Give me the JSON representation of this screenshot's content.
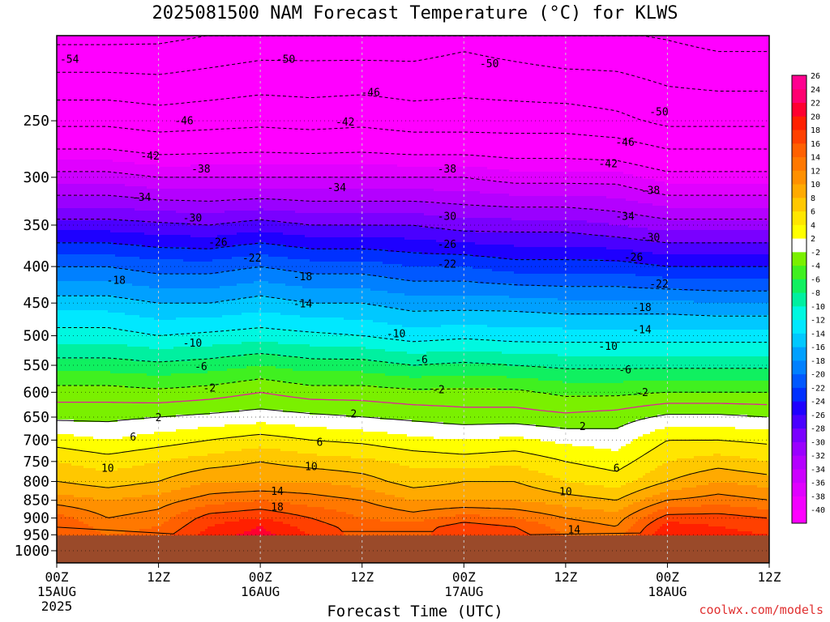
{
  "title": "2025081500 NAM Forecast Temperature (°C) for KLWS",
  "xlabel": "Forecast Time (UTC)",
  "credit": "coolwx.com/models",
  "chart_data": {
    "type": "heatmap",
    "subtype": "time-height filled contour",
    "title": "2025081500 NAM Forecast Temperature (°C) for KLWS",
    "xlabel": "Forecast Time (UTC)",
    "ylabel": "",
    "x_range_hours": [
      0,
      84
    ],
    "x_ticks": [
      {
        "hour": 0,
        "label": "00Z",
        "date": "15AUG",
        "year": "2025"
      },
      {
        "hour": 12,
        "label": "12Z",
        "date": "",
        "year": ""
      },
      {
        "hour": 24,
        "label": "00Z",
        "date": "16AUG",
        "year": ""
      },
      {
        "hour": 36,
        "label": "12Z",
        "date": "",
        "year": ""
      },
      {
        "hour": 48,
        "label": "00Z",
        "date": "17AUG",
        "year": ""
      },
      {
        "hour": 60,
        "label": "12Z",
        "date": "",
        "year": ""
      },
      {
        "hour": 72,
        "label": "00Z",
        "date": "18AUG",
        "year": ""
      },
      {
        "hour": 84,
        "label": "12Z",
        "date": "",
        "year": ""
      }
    ],
    "y_axis": "pressure (hPa), log scale, decreasing upward",
    "y_range": [
      1040,
      190
    ],
    "y_ticks": [
      250,
      300,
      350,
      400,
      450,
      500,
      550,
      600,
      650,
      700,
      750,
      800,
      850,
      900,
      950,
      1000
    ],
    "surface_pressure_hPa": 952,
    "below_ground_color": "#9a4a2a",
    "colorbar": {
      "levels": [
        -40,
        -38,
        -36,
        -34,
        -32,
        -30,
        -28,
        -26,
        -24,
        -22,
        -20,
        -18,
        -16,
        -14,
        -12,
        -10,
        -8,
        -6,
        -4,
        -2,
        2,
        4,
        6,
        8,
        10,
        12,
        14,
        16,
        18,
        20,
        22,
        24,
        26
      ],
      "colors": [
        "#ff00ff",
        "#f200ff",
        "#e000ff",
        "#cc00ff",
        "#b400ff",
        "#9a00ff",
        "#7a00ff",
        "#4a00ff",
        "#1e00ff",
        "#0030ff",
        "#0058ff",
        "#0080ff",
        "#00a0ff",
        "#00c8ff",
        "#00e8ff",
        "#00f8e0",
        "#00f0a0",
        "#10f060",
        "#40f020",
        "#7af000",
        "#ffffff",
        "#ffff00",
        "#ffe600",
        "#ffc800",
        "#ffaa00",
        "#ff9000",
        "#ff7800",
        "#ff6000",
        "#ff4000",
        "#ff2000",
        "#ff0030",
        "#ff0070",
        "#ff0090"
      ]
    },
    "profile_pressures_hPa": [
      952,
      925,
      900,
      850,
      800,
      750,
      700,
      650,
      600,
      550,
      500,
      450,
      400,
      350,
      300,
      250,
      200
    ],
    "temperature_profiles": [
      {
        "hour": 0,
        "temps": [
          18,
          18,
          17,
          13,
          10,
          8,
          5,
          1.5,
          -1,
          -5,
          -9,
          -13,
          -18,
          -25,
          -33,
          -43,
          -53
        ]
      },
      {
        "hour": 6,
        "temps": [
          16,
          15,
          14,
          12,
          9,
          7,
          4,
          1.5,
          -1,
          -5,
          -9,
          -13,
          -18,
          -25,
          -33,
          -43,
          -53
        ]
      },
      {
        "hour": 12,
        "temps": [
          17,
          16,
          15,
          13,
          10,
          8,
          5,
          2,
          -1.5,
          -5.5,
          -10,
          -14,
          -19,
          -25.5,
          -34,
          -44,
          -53
        ]
      },
      {
        "hour": 18,
        "temps": [
          21,
          20,
          19,
          15,
          12,
          9,
          6,
          2.5,
          -1,
          -5,
          -9.5,
          -14,
          -19,
          -26,
          -34,
          -43.5,
          -52
        ]
      },
      {
        "hour": 24,
        "temps": [
          23,
          22,
          20,
          16,
          12,
          10,
          7,
          3,
          0,
          -4,
          -9,
          -13,
          -18,
          -25,
          -34,
          -43,
          -51
        ]
      },
      {
        "hour": 30,
        "temps": [
          20,
          19,
          18,
          15,
          12,
          9,
          6,
          2.5,
          -1,
          -5,
          -9.5,
          -14,
          -19,
          -26,
          -34,
          -43.5,
          -51
        ]
      },
      {
        "hour": 36,
        "temps": [
          17,
          17,
          16,
          14,
          11,
          8.5,
          5.5,
          2,
          -1,
          -5,
          -10,
          -14,
          -19,
          -26,
          -34,
          -43,
          -51
        ]
      },
      {
        "hour": 42,
        "temps": [
          17,
          17,
          15,
          12,
          9,
          7.5,
          4.5,
          1.5,
          -1.5,
          -6,
          -11,
          -15,
          -20,
          -26,
          -34,
          -44,
          -51
        ]
      },
      {
        "hour": 48,
        "temps": [
          20,
          19,
          17,
          12,
          10,
          7,
          4,
          1,
          -1.5,
          -5.5,
          -10.5,
          -15,
          -20,
          -27,
          -34,
          -44,
          -50
        ]
      },
      {
        "hour": 54,
        "temps": [
          19,
          18,
          16,
          12,
          10,
          7.5,
          4.5,
          1,
          -1.5,
          -6,
          -11,
          -15,
          -21,
          -27,
          -35,
          -44,
          -51
        ]
      },
      {
        "hour": 60,
        "temps": [
          16,
          15,
          14,
          11,
          8,
          6,
          3.5,
          0.5,
          -2.5,
          -6.5,
          -11,
          -15.5,
          -21,
          -27,
          -35,
          -44,
          -52
        ]
      },
      {
        "hour": 66,
        "temps": [
          15,
          14,
          13,
          10,
          7,
          5,
          3,
          1,
          -2.5,
          -6.5,
          -11,
          -15.5,
          -21,
          -28,
          -35,
          -45,
          -52
        ]
      },
      {
        "hour": 72,
        "temps": [
          22,
          21,
          19,
          14,
          10,
          8,
          6,
          2.5,
          -2,
          -6.5,
          -11,
          -15.5,
          -22,
          -29,
          -37,
          -47,
          -53
        ]
      },
      {
        "hour": 78,
        "temps": [
          21,
          20,
          19,
          15,
          12,
          9,
          6,
          2.5,
          -2,
          -6.5,
          -11,
          -16,
          -22,
          -29,
          -37,
          -47,
          -54
        ]
      },
      {
        "hour": 84,
        "temps": [
          20,
          19,
          18,
          14,
          11,
          8,
          5.5,
          2,
          -2,
          -6.5,
          -11,
          -16,
          -22,
          -29,
          -37,
          -47,
          -54
        ]
      }
    ],
    "contour_levels": [
      -54,
      -50,
      -46,
      -42,
      -38,
      -34,
      -30,
      -26,
      -22,
      -18,
      -14,
      -10,
      -6,
      -2,
      2,
      6,
      10,
      14,
      18
    ],
    "contour_labels": [
      {
        "value": "-54",
        "hour": 1.5,
        "p": 205
      },
      {
        "value": "-50",
        "hour": 27,
        "p": 205
      },
      {
        "value": "-50",
        "hour": 51,
        "p": 208
      },
      {
        "value": "-46",
        "hour": 37,
        "p": 228
      },
      {
        "value": "-46",
        "hour": 15,
        "p": 250
      },
      {
        "value": "-42",
        "hour": 34,
        "p": 251
      },
      {
        "value": "-50",
        "hour": 71,
        "p": 243
      },
      {
        "value": "-46",
        "hour": 67,
        "p": 268
      },
      {
        "value": "-42",
        "hour": 11,
        "p": 280
      },
      {
        "value": "-42",
        "hour": 65,
        "p": 287
      },
      {
        "value": "-38",
        "hour": 17,
        "p": 292
      },
      {
        "value": "-38",
        "hour": 46,
        "p": 292
      },
      {
        "value": "-34",
        "hour": 33,
        "p": 310
      },
      {
        "value": "-38",
        "hour": 70,
        "p": 313
      },
      {
        "value": "-34",
        "hour": 10,
        "p": 320
      },
      {
        "value": "-30",
        "hour": 16,
        "p": 342
      },
      {
        "value": "-30",
        "hour": 46,
        "p": 340
      },
      {
        "value": "-34",
        "hour": 67,
        "p": 340
      },
      {
        "value": "-26",
        "hour": 19,
        "p": 370
      },
      {
        "value": "-26",
        "hour": 46,
        "p": 372
      },
      {
        "value": "-30",
        "hour": 70,
        "p": 364
      },
      {
        "value": "-22",
        "hour": 23,
        "p": 389
      },
      {
        "value": "-22",
        "hour": 46,
        "p": 397
      },
      {
        "value": "-26",
        "hour": 68,
        "p": 388
      },
      {
        "value": "-18",
        "hour": 7,
        "p": 418
      },
      {
        "value": "-18",
        "hour": 29,
        "p": 413
      },
      {
        "value": "-22",
        "hour": 71,
        "p": 423
      },
      {
        "value": "-14",
        "hour": 29,
        "p": 451
      },
      {
        "value": "-18",
        "hour": 69,
        "p": 456
      },
      {
        "value": "-14",
        "hour": 69,
        "p": 490
      },
      {
        "value": "-10",
        "hour": 40,
        "p": 497
      },
      {
        "value": "-10",
        "hour": 16,
        "p": 512
      },
      {
        "value": "-10",
        "hour": 65,
        "p": 517
      },
      {
        "value": "-6",
        "hour": 43,
        "p": 540
      },
      {
        "value": "-6",
        "hour": 17,
        "p": 552
      },
      {
        "value": "-6",
        "hour": 67,
        "p": 558
      },
      {
        "value": "-2",
        "hour": 18,
        "p": 592
      },
      {
        "value": "-2",
        "hour": 45,
        "p": 595
      },
      {
        "value": "-2",
        "hour": 69,
        "p": 600
      },
      {
        "value": "2",
        "hour": 35,
        "p": 643
      },
      {
        "value": "2",
        "hour": 12,
        "p": 651
      },
      {
        "value": "2",
        "hour": 62,
        "p": 670
      },
      {
        "value": "6",
        "hour": 9,
        "p": 693
      },
      {
        "value": "6",
        "hour": 31,
        "p": 705
      },
      {
        "value": "10",
        "hour": 6,
        "p": 766
      },
      {
        "value": "10",
        "hour": 30,
        "p": 762
      },
      {
        "value": "6",
        "hour": 66,
        "p": 766
      },
      {
        "value": "14",
        "hour": 26,
        "p": 825
      },
      {
        "value": "10",
        "hour": 60,
        "p": 826
      },
      {
        "value": "18",
        "hour": 26,
        "p": 868
      },
      {
        "value": "14",
        "hour": 61,
        "p": 935
      }
    ]
  }
}
